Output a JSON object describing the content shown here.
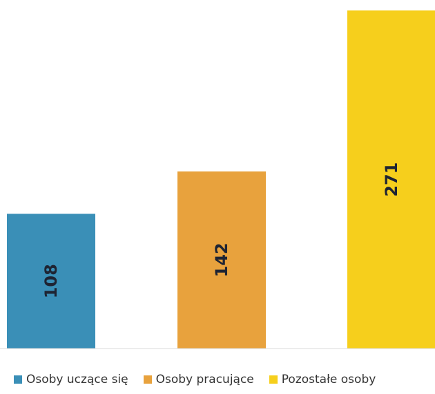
{
  "chart_data": {
    "type": "bar",
    "title": "",
    "xlabel": "",
    "ylabel": "",
    "ylim": [
      0,
      275
    ],
    "grid": false,
    "legend_position": "bottom",
    "series": [
      {
        "name": "Osoby uczące się",
        "value": 108,
        "label": "108",
        "color": "#3a8fb7"
      },
      {
        "name": "Osoby pracujące",
        "value": 142,
        "label": "142",
        "color": "#e8a23d"
      },
      {
        "name": "Pozostałe osoby",
        "value": 271,
        "label": "271",
        "color": "#f6cf1c"
      }
    ]
  }
}
